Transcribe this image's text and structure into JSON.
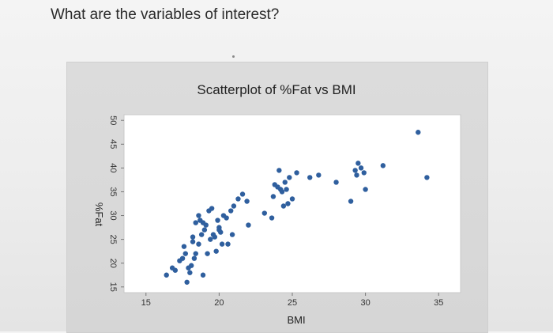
{
  "question": "What are the variables of interest?",
  "chart_data": {
    "type": "scatter",
    "title": "Scatterplot of %Fat vs BMI",
    "xlabel": "BMI",
    "ylabel": "%Fat",
    "xlim": [
      13.5,
      36.5
    ],
    "ylim": [
      13.8,
      51.2
    ],
    "xticks": [
      15,
      20,
      25,
      30,
      35
    ],
    "yticks": [
      15,
      20,
      25,
      30,
      35,
      40,
      45,
      50
    ],
    "grid": false,
    "marker_color": "#2f5f9e",
    "x": [
      16.4,
      16.8,
      17.0,
      17.3,
      17.5,
      17.7,
      17.9,
      18.1,
      17.6,
      18.2,
      18.4,
      18.6,
      18.8,
      18.3,
      18.0,
      18.9,
      17.8,
      18.4,
      18.6,
      19.0,
      19.3,
      18.2,
      18.7,
      19.1,
      19.4,
      19.6,
      19.2,
      19.8,
      20.0,
      19.5,
      19.9,
      20.1,
      20.3,
      20.2,
      19.7,
      18.9,
      20.0,
      20.5,
      20.8,
      21.0,
      20.6,
      21.3,
      20.9,
      21.6,
      21.9,
      22.0,
      23.1,
      23.6,
      23.7,
      24.0,
      24.2,
      24.5,
      24.8,
      24.3,
      24.1,
      23.8,
      24.7,
      25.0,
      24.6,
      24.4,
      25.3,
      26.2,
      26.8,
      28.0,
      29.0,
      30.0,
      29.5,
      29.3,
      29.7,
      29.4,
      29.9,
      31.2,
      33.6,
      34.2
    ],
    "y": [
      17.5,
      19.0,
      18.5,
      20.5,
      21.0,
      22.0,
      19.0,
      19.5,
      23.5,
      25.5,
      22.0,
      24.0,
      26.0,
      21.0,
      18.0,
      17.5,
      16.0,
      28.5,
      30.0,
      27.0,
      31.0,
      24.5,
      29.0,
      28.0,
      25.0,
      26.0,
      22.0,
      22.5,
      27.0,
      31.5,
      29.0,
      26.5,
      30.0,
      24.0,
      25.5,
      28.5,
      27.5,
      29.5,
      31.0,
      32.0,
      24.0,
      33.5,
      26.0,
      34.5,
      33.0,
      28.0,
      30.5,
      29.5,
      34.0,
      36.0,
      35.5,
      37.0,
      38.0,
      35.0,
      39.5,
      36.5,
      32.5,
      33.5,
      35.5,
      32.0,
      39.0,
      38.0,
      38.5,
      37.0,
      33.0,
      35.5,
      41.0,
      39.5,
      40.0,
      38.5,
      39.0,
      40.5,
      47.5,
      38.0
    ]
  }
}
